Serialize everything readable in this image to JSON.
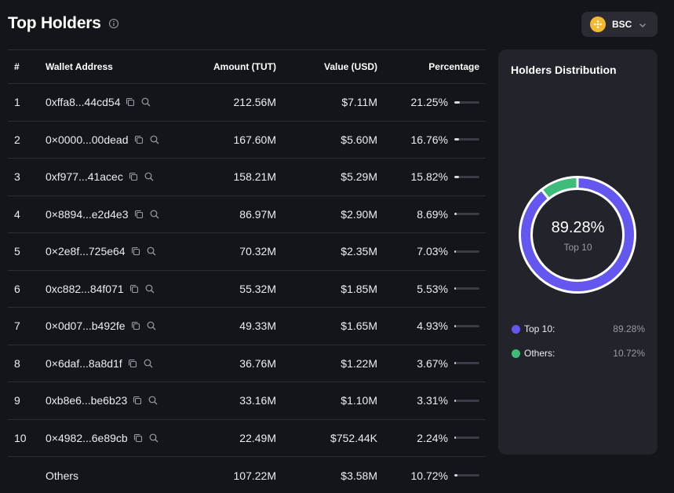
{
  "header": {
    "title": "Top Holders",
    "info_icon": "info-circle-icon"
  },
  "chain_selector": {
    "label": "BSC",
    "logo_color": "#f3ba2f",
    "icon": "chevron-down-icon"
  },
  "table": {
    "columns": [
      "#",
      "Wallet Address",
      "Amount (TUT)",
      "Value (USD)",
      "Percentage"
    ],
    "rows": [
      {
        "rank": "1",
        "address": "0xffa8...44cd54",
        "amount": "212.56M",
        "value": "$7.11M",
        "percentage": "21.25%",
        "pct_value": 21.25
      },
      {
        "rank": "2",
        "address": "0×0000...00dead",
        "amount": "167.60M",
        "value": "$5.60M",
        "percentage": "16.76%",
        "pct_value": 16.76
      },
      {
        "rank": "3",
        "address": "0xf977...41acec",
        "amount": "158.21M",
        "value": "$5.29M",
        "percentage": "15.82%",
        "pct_value": 15.82
      },
      {
        "rank": "4",
        "address": "0×8894...e2d4e3",
        "amount": "86.97M",
        "value": "$2.90M",
        "percentage": "8.69%",
        "pct_value": 8.69
      },
      {
        "rank": "5",
        "address": "0×2e8f...725e64",
        "amount": "70.32M",
        "value": "$2.35M",
        "percentage": "7.03%",
        "pct_value": 7.03
      },
      {
        "rank": "6",
        "address": "0xc882...84f071",
        "amount": "55.32M",
        "value": "$1.85M",
        "percentage": "5.53%",
        "pct_value": 5.53
      },
      {
        "rank": "7",
        "address": "0×0d07...b492fe",
        "amount": "49.33M",
        "value": "$1.65M",
        "percentage": "4.93%",
        "pct_value": 4.93
      },
      {
        "rank": "8",
        "address": "0×6daf...8a8d1f",
        "amount": "36.76M",
        "value": "$1.22M",
        "percentage": "3.67%",
        "pct_value": 3.67
      },
      {
        "rank": "9",
        "address": "0xb8e6...be6b23",
        "amount": "33.16M",
        "value": "$1.10M",
        "percentage": "3.31%",
        "pct_value": 3.31
      },
      {
        "rank": "10",
        "address": "0×4982...6e89cb",
        "amount": "22.49M",
        "value": "$752.44K",
        "percentage": "2.24%",
        "pct_value": 2.24
      }
    ],
    "others": {
      "label": "Others",
      "amount": "107.22M",
      "value": "$3.58M",
      "percentage": "10.72%",
      "pct_value": 10.72
    }
  },
  "distribution": {
    "title": "Holders Distribution",
    "center_value": "89.28%",
    "center_label": "Top 10",
    "segments": [
      {
        "label": "Top 10:",
        "value": "89.28%",
        "pct": 89.28,
        "color": "#6357f0"
      },
      {
        "label": "Others:",
        "value": "10.72%",
        "pct": 10.72,
        "color": "#3ebc7a"
      }
    ]
  }
}
